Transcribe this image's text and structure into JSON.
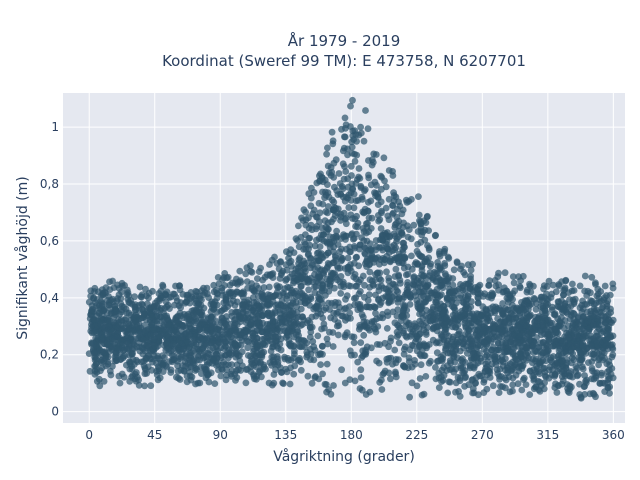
{
  "chart_data": {
    "type": "scatter",
    "title_line1": "År 1979 - 2019",
    "title_line2": "Koordinat (Sweref 99 TM): E 473758, N 6207701",
    "xlabel": "Vågriktning (grader)",
    "ylabel": "Signifikant våghöjd (m)",
    "xlim": [
      -18,
      368
    ],
    "ylim": [
      -0.04,
      1.12
    ],
    "xticks": [
      0,
      45,
      90,
      135,
      180,
      225,
      270,
      315,
      360
    ],
    "xtick_labels": [
      "0",
      "45",
      "90",
      "135",
      "180",
      "225",
      "270",
      "315",
      "360"
    ],
    "yticks": [
      0,
      0.2,
      0.4,
      0.6,
      0.8,
      1.0
    ],
    "ytick_labels": [
      "0",
      "0,2",
      "0,4",
      "0,6",
      "0,8",
      "1"
    ],
    "grid": true,
    "marker_color": "#2f566e",
    "plot_background": "#e5e8f0",
    "envelope": {
      "direction": [
        0,
        20,
        45,
        70,
        90,
        110,
        130,
        140,
        150,
        160,
        170,
        180,
        190,
        200,
        210,
        220,
        230,
        240,
        250,
        260,
        270,
        290,
        315,
        340,
        360
      ],
      "upper": [
        0.46,
        0.46,
        0.45,
        0.45,
        0.48,
        0.52,
        0.56,
        0.63,
        0.8,
        0.97,
        1.06,
        1.11,
        1.06,
        0.95,
        0.88,
        0.82,
        0.74,
        0.65,
        0.56,
        0.53,
        0.5,
        0.5,
        0.48,
        0.48,
        0.46
      ],
      "lower": [
        0.09,
        0.09,
        0.09,
        0.09,
        0.09,
        0.09,
        0.08,
        0.07,
        0.06,
        0.05,
        0.04,
        0.04,
        0.04,
        0.04,
        0.04,
        0.05,
        0.05,
        0.05,
        0.05,
        0.05,
        0.05,
        0.05,
        0.05,
        0.04,
        0.04
      ]
    }
  }
}
